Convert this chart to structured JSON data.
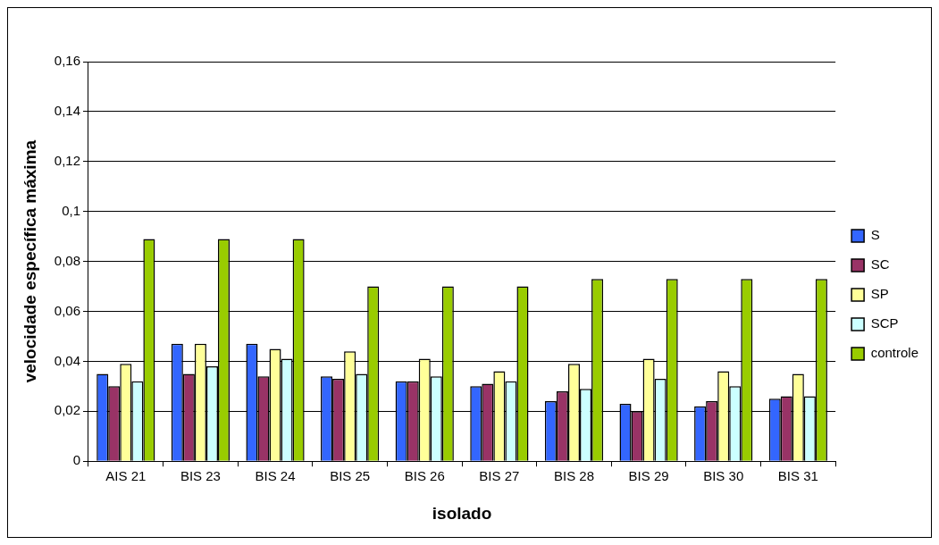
{
  "chart_data": {
    "type": "bar",
    "xlabel": "isolado",
    "ylabel": "velocidade específica máxima",
    "categories": [
      "AIS 21",
      "BIS 23",
      "BIS 24",
      "BIS 25",
      "BIS 26",
      "BIS 27",
      "BIS 28",
      "BIS 29",
      "BIS 30",
      "BIS 31"
    ],
    "series": [
      {
        "name": "S",
        "color": "#3366ff",
        "values": [
          0.035,
          0.047,
          0.047,
          0.034,
          0.032,
          0.03,
          0.024,
          0.023,
          0.022,
          0.025
        ]
      },
      {
        "name": "SC",
        "color": "#993366",
        "values": [
          0.03,
          0.035,
          0.034,
          0.033,
          0.032,
          0.031,
          0.028,
          0.02,
          0.024,
          0.026
        ]
      },
      {
        "name": "SP",
        "color": "#ffff99",
        "values": [
          0.039,
          0.047,
          0.045,
          0.044,
          0.041,
          0.036,
          0.039,
          0.041,
          0.036,
          0.035
        ]
      },
      {
        "name": "SCP",
        "color": "#ccffff",
        "values": [
          0.032,
          0.038,
          0.041,
          0.035,
          0.034,
          0.032,
          0.029,
          0.033,
          0.03,
          0.026
        ]
      },
      {
        "name": "controle",
        "color": "#99cc00",
        "values": [
          0.089,
          0.089,
          0.089,
          0.07,
          0.07,
          0.07,
          0.073,
          0.073,
          0.073,
          0.073
        ]
      }
    ],
    "ylim": [
      0,
      0.16
    ],
    "yticks": [
      {
        "value": 0,
        "label": "0"
      },
      {
        "value": 0.02,
        "label": "0,02"
      },
      {
        "value": 0.04,
        "label": "0,04"
      },
      {
        "value": 0.06,
        "label": "0,06"
      },
      {
        "value": 0.08,
        "label": "0,08"
      },
      {
        "value": 0.1,
        "label": "0,1"
      },
      {
        "value": 0.12,
        "label": "0,12"
      },
      {
        "value": 0.14,
        "label": "0,14"
      },
      {
        "value": 0.16,
        "label": "0,16"
      }
    ],
    "grid": "y",
    "legend": "right"
  }
}
